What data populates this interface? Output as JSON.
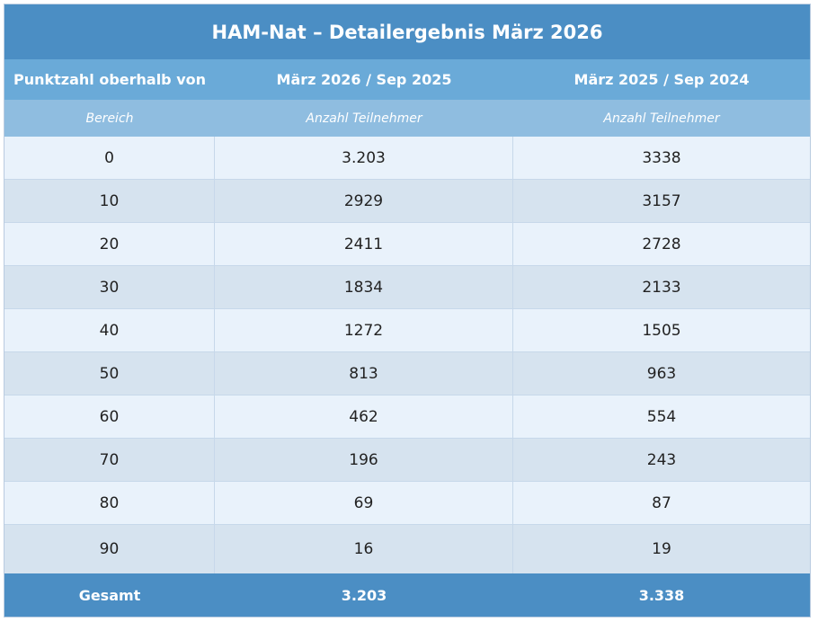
{
  "title": "HAM-Nat – Detailergebnis März 2026",
  "header": {
    "col1": "Punktzahl oberhalb von",
    "col2": "März 2026 / Sep 2025",
    "col3": "März 2025 / Sep 2024"
  },
  "subheader": {
    "col1": "Bereich",
    "col2": "Anzahl Teilnehmer",
    "col3": "Anzahl Teilnehmer"
  },
  "rows": [
    {
      "range": "0",
      "current": "3.203",
      "previous": "3338"
    },
    {
      "range": "10",
      "current": "2929",
      "previous": "3157"
    },
    {
      "range": "20",
      "current": "2411",
      "previous": "2728"
    },
    {
      "range": "30",
      "current": "1834",
      "previous": "2133"
    },
    {
      "range": "40",
      "current": "1272",
      "previous": "1505"
    },
    {
      "range": "50",
      "current": "813",
      "previous": "963"
    },
    {
      "range": "60",
      "current": "462",
      "previous": "554"
    },
    {
      "range": "70",
      "current": "196",
      "previous": "243"
    },
    {
      "range": "80",
      "current": "69",
      "previous": "87"
    },
    {
      "range": "90",
      "current": "16",
      "previous": "19"
    }
  ],
  "total": {
    "label": "Gesamt",
    "current": "3.203",
    "previous": "3.338"
  },
  "colors": {
    "title_bg": "#4b8ec4",
    "header_bg": "#6aaad8",
    "subheader_bg": "#8fbde0",
    "row_light": "#e9f2fb",
    "row_dark": "#d6e3ef",
    "total_bg": "#4b8ec4"
  }
}
